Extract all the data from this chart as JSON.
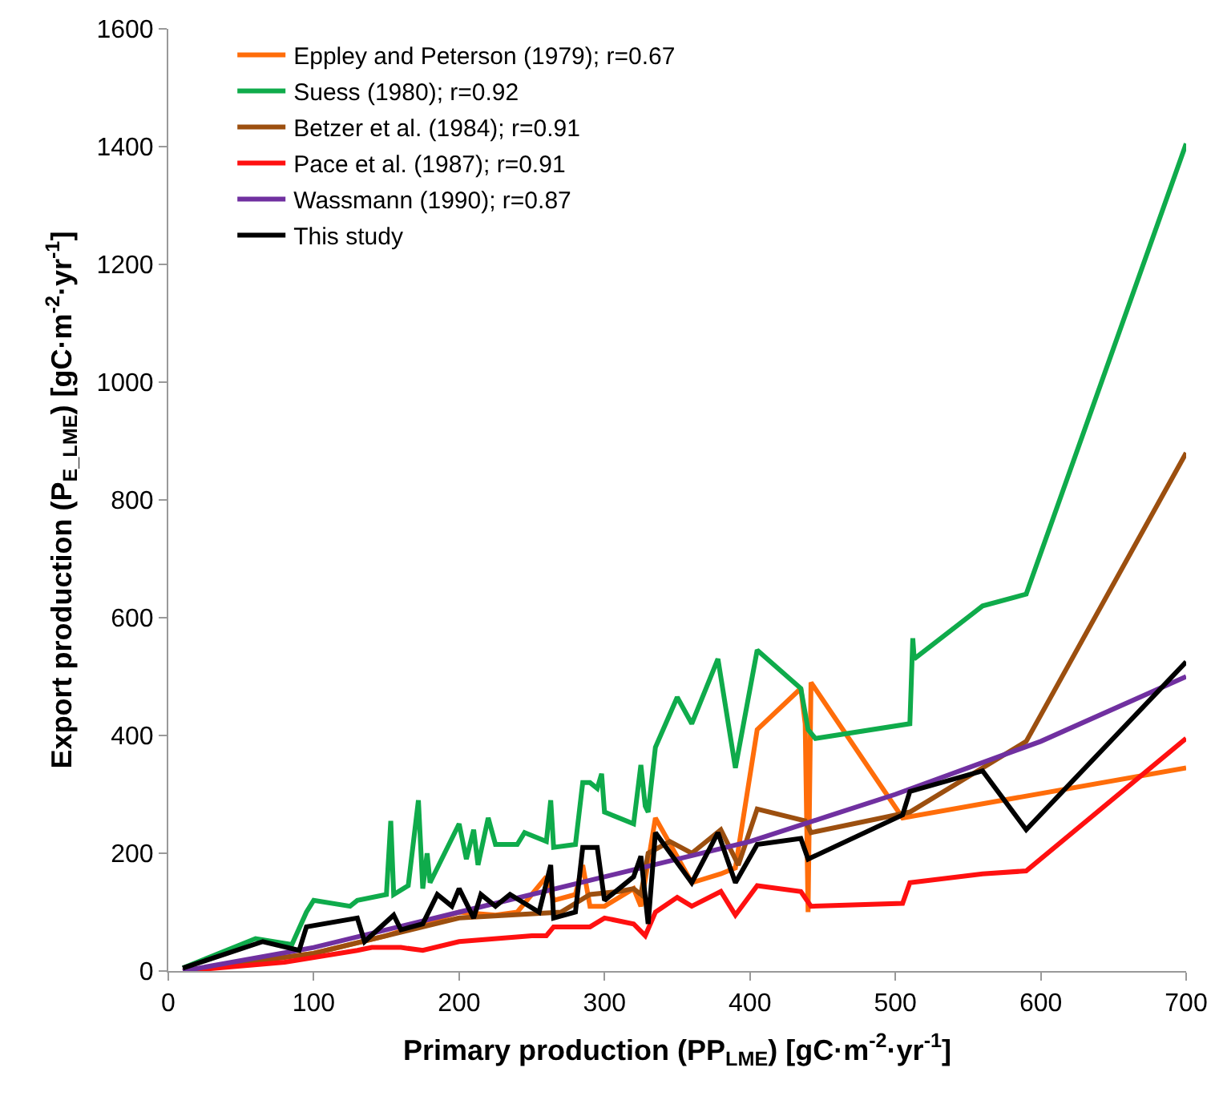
{
  "chart_data": {
    "type": "line",
    "xlabel": "Primary production (PP$_{LME}$) [gC·m$^{-2}$·yr$^{-1}$]",
    "ylabel": "Export production (P$_{E_LME}$) [gC·m$^{-2}$·yr$^{-1}$]",
    "xlim": [
      0,
      700
    ],
    "xticks": [
      0,
      100,
      200,
      300,
      400,
      500,
      600,
      700
    ],
    "ylim": [
      0,
      1600
    ],
    "yticks": [
      0,
      200,
      400,
      600,
      800,
      1000,
      1200,
      1400,
      1600
    ],
    "grid": false,
    "legend": "top left",
    "marker": "none",
    "line_style": "solid",
    "series": [
      {
        "name": "Eppley and Peterson (1979); r=0.67",
        "color": "#ff6d0a",
        "x": [
          10,
          100,
          150,
          200,
          225,
          240,
          260,
          265,
          280,
          285,
          290,
          300,
          320,
          325,
          335,
          360,
          380,
          390,
          405,
          435,
          438,
          440,
          442,
          505,
          700
        ],
        "values": [
          0,
          30,
          60,
          100,
          95,
          100,
          160,
          120,
          130,
          180,
          110,
          110,
          140,
          110,
          260,
          150,
          165,
          175,
          410,
          480,
          420,
          100,
          490,
          260,
          345
        ]
      },
      {
        "name": "Suess (1980); r=0.92",
        "color": "#0fab4b",
        "x": [
          10,
          60,
          85,
          95,
          100,
          125,
          130,
          150,
          153,
          155,
          165,
          172,
          175,
          178,
          180,
          200,
          205,
          210,
          213,
          220,
          225,
          240,
          245,
          260,
          263,
          265,
          280,
          285,
          290,
          295,
          298,
          300,
          320,
          325,
          328,
          330,
          335,
          350,
          360,
          378,
          390,
          405,
          435,
          440,
          445,
          510,
          512,
          513,
          560,
          590,
          700
        ],
        "values": [
          5,
          55,
          45,
          100,
          120,
          110,
          120,
          130,
          255,
          130,
          145,
          290,
          140,
          200,
          150,
          250,
          190,
          240,
          180,
          260,
          215,
          215,
          235,
          220,
          290,
          210,
          215,
          320,
          320,
          310,
          335,
          270,
          250,
          350,
          280,
          270,
          380,
          465,
          420,
          530,
          345,
          545,
          480,
          410,
          395,
          420,
          565,
          530,
          620,
          640,
          1405
        ]
      },
      {
        "name": "Betzer et al. (1984); r=0.91",
        "color": "#9c4f0f",
        "x": [
          10,
          100,
          200,
          270,
          290,
          310,
          320,
          325,
          330,
          345,
          360,
          380,
          392,
          405,
          438,
          442,
          510,
          590,
          700
        ],
        "values": [
          0,
          30,
          90,
          100,
          130,
          135,
          140,
          130,
          200,
          220,
          200,
          240,
          180,
          275,
          255,
          235,
          270,
          390,
          880
        ]
      },
      {
        "name": "Pace et al. (1987); r=0.91",
        "color": "#ff1010",
        "x": [
          10,
          80,
          130,
          140,
          160,
          175,
          200,
          250,
          260,
          265,
          290,
          300,
          320,
          328,
          335,
          350,
          360,
          380,
          390,
          405,
          435,
          442,
          505,
          510,
          560,
          590,
          700
        ],
        "values": [
          0,
          15,
          35,
          40,
          40,
          35,
          50,
          60,
          60,
          75,
          75,
          90,
          80,
          60,
          100,
          125,
          110,
          135,
          95,
          145,
          135,
          110,
          115,
          150,
          165,
          170,
          395
        ]
      },
      {
        "name": "Wassmann (1990); r=0.87",
        "color": "#7030a0",
        "x": [
          10,
          100,
          200,
          300,
          400,
          500,
          600,
          700
        ],
        "values": [
          0,
          40,
          100,
          160,
          220,
          300,
          390,
          500
        ]
      },
      {
        "name": "This study",
        "color": "#000000",
        "x": [
          10,
          65,
          90,
          95,
          130,
          135,
          155,
          160,
          175,
          185,
          195,
          200,
          210,
          215,
          225,
          235,
          245,
          255,
          263,
          265,
          280,
          285,
          295,
          300,
          320,
          325,
          330,
          335,
          360,
          378,
          390,
          405,
          435,
          440,
          505,
          510,
          560,
          590,
          700
        ],
        "values": [
          5,
          50,
          35,
          75,
          90,
          50,
          95,
          70,
          80,
          130,
          110,
          140,
          90,
          130,
          110,
          130,
          115,
          100,
          180,
          90,
          100,
          210,
          210,
          120,
          160,
          195,
          80,
          235,
          150,
          235,
          150,
          215,
          225,
          190,
          265,
          305,
          340,
          240,
          525
        ]
      }
    ]
  }
}
